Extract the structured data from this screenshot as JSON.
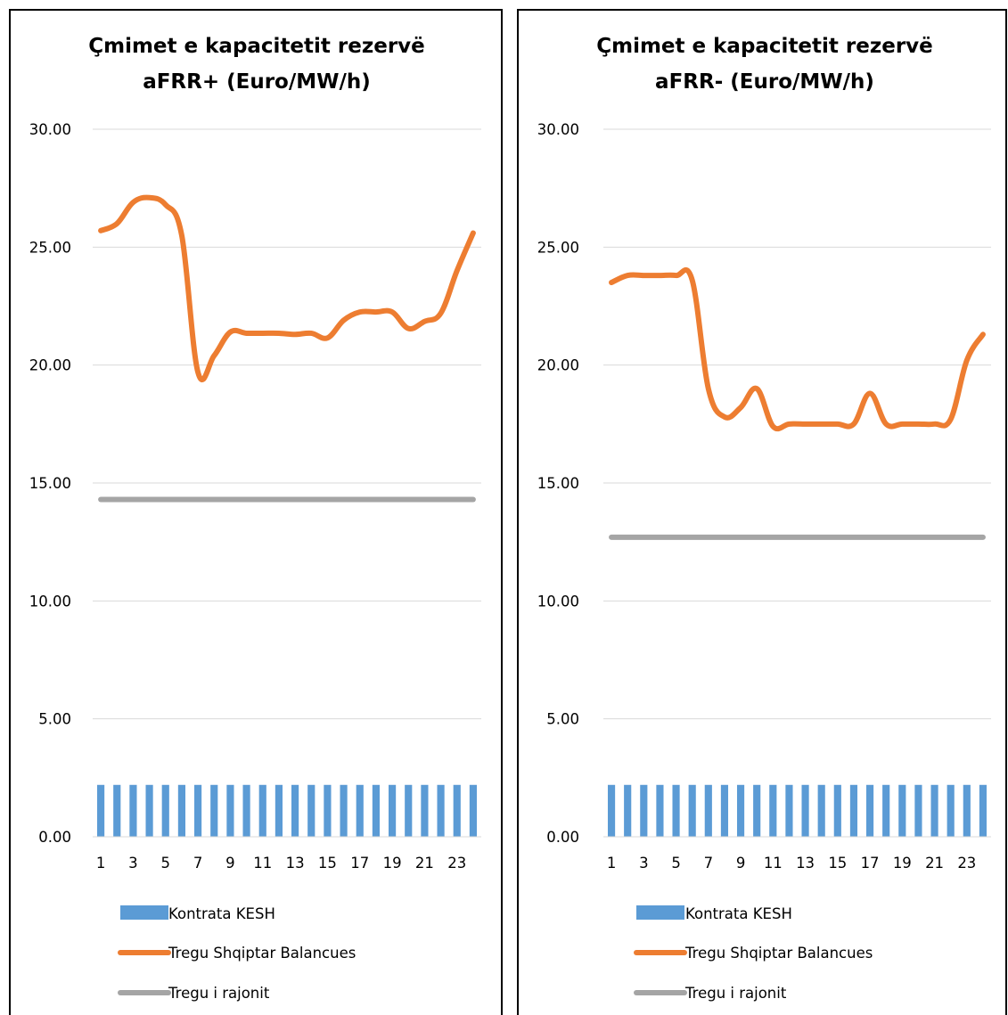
{
  "chart_data": [
    {
      "type": "bar+line",
      "title_lines": [
        "Çmimet e kapacitetit rezervë",
        "aFRR+ (Euro/MW/h)"
      ],
      "ylim": [
        0,
        30
      ],
      "yticks": [
        "0.00",
        "5.00",
        "10.00",
        "15.00",
        "20.00",
        "25.00",
        "30.00"
      ],
      "x": [
        1,
        2,
        3,
        4,
        5,
        6,
        7,
        8,
        9,
        10,
        11,
        12,
        13,
        14,
        15,
        16,
        17,
        18,
        19,
        20,
        21,
        22,
        23,
        24
      ],
      "xtick_labels": [
        "1",
        "3",
        "5",
        "7",
        "9",
        "11",
        "13",
        "15",
        "17",
        "19",
        "21",
        "23"
      ],
      "grid": true,
      "legend_position": "bottom",
      "series": [
        {
          "name": "Kontrata KESH",
          "kind": "bar",
          "color": "#5b9bd5",
          "values": [
            2.2,
            2.2,
            2.2,
            2.2,
            2.2,
            2.2,
            2.2,
            2.2,
            2.2,
            2.2,
            2.2,
            2.2,
            2.2,
            2.2,
            2.2,
            2.2,
            2.2,
            2.2,
            2.2,
            2.2,
            2.2,
            2.2,
            2.2,
            2.2
          ]
        },
        {
          "name": "Tregu Shqiptar Balancues",
          "kind": "line",
          "color": "#ed7d31",
          "values": [
            25.7,
            26.0,
            26.9,
            27.1,
            26.8,
            25.5,
            19.7,
            20.4,
            21.4,
            21.35,
            21.35,
            21.35,
            21.3,
            21.35,
            21.15,
            21.9,
            22.25,
            22.25,
            22.25,
            21.55,
            21.85,
            22.2,
            24.0,
            25.6
          ]
        },
        {
          "name": "Tregu i rajonit",
          "kind": "line",
          "color": "#a5a5a5",
          "values": [
            14.3,
            14.3,
            14.3,
            14.3,
            14.3,
            14.3,
            14.3,
            14.3,
            14.3,
            14.3,
            14.3,
            14.3,
            14.3,
            14.3,
            14.3,
            14.3,
            14.3,
            14.3,
            14.3,
            14.3,
            14.3,
            14.3,
            14.3,
            14.3
          ]
        }
      ]
    },
    {
      "type": "bar+line",
      "title_lines": [
        "Çmimet e kapacitetit rezervë",
        "aFRR- (Euro/MW/h)"
      ],
      "ylim": [
        0,
        30
      ],
      "yticks": [
        "0.00",
        "5.00",
        "10.00",
        "15.00",
        "20.00",
        "25.00",
        "30.00"
      ],
      "x": [
        1,
        2,
        3,
        4,
        5,
        6,
        7,
        8,
        9,
        10,
        11,
        12,
        13,
        14,
        15,
        16,
        17,
        18,
        19,
        20,
        21,
        22,
        23,
        24
      ],
      "xtick_labels": [
        "1",
        "3",
        "5",
        "7",
        "9",
        "11",
        "13",
        "15",
        "17",
        "19",
        "21",
        "23"
      ],
      "grid": true,
      "legend_position": "bottom",
      "series": [
        {
          "name": "Kontrata KESH",
          "kind": "bar",
          "color": "#5b9bd5",
          "values": [
            2.2,
            2.2,
            2.2,
            2.2,
            2.2,
            2.2,
            2.2,
            2.2,
            2.2,
            2.2,
            2.2,
            2.2,
            2.2,
            2.2,
            2.2,
            2.2,
            2.2,
            2.2,
            2.2,
            2.2,
            2.2,
            2.2,
            2.2,
            2.2
          ]
        },
        {
          "name": "Tregu Shqiptar Balancues",
          "kind": "line",
          "color": "#ed7d31",
          "values": [
            23.5,
            23.8,
            23.8,
            23.8,
            23.8,
            23.6,
            19.0,
            17.8,
            18.2,
            19.0,
            17.4,
            17.5,
            17.5,
            17.5,
            17.5,
            17.5,
            18.8,
            17.5,
            17.5,
            17.5,
            17.5,
            17.7,
            20.2,
            21.3
          ]
        },
        {
          "name": "Tregu i rajonit",
          "kind": "line",
          "color": "#a5a5a5",
          "values": [
            12.7,
            12.7,
            12.7,
            12.7,
            12.7,
            12.7,
            12.7,
            12.7,
            12.7,
            12.7,
            12.7,
            12.7,
            12.7,
            12.7,
            12.7,
            12.7,
            12.7,
            12.7,
            12.7,
            12.7,
            12.7,
            12.7,
            12.7,
            12.7
          ]
        }
      ]
    }
  ]
}
